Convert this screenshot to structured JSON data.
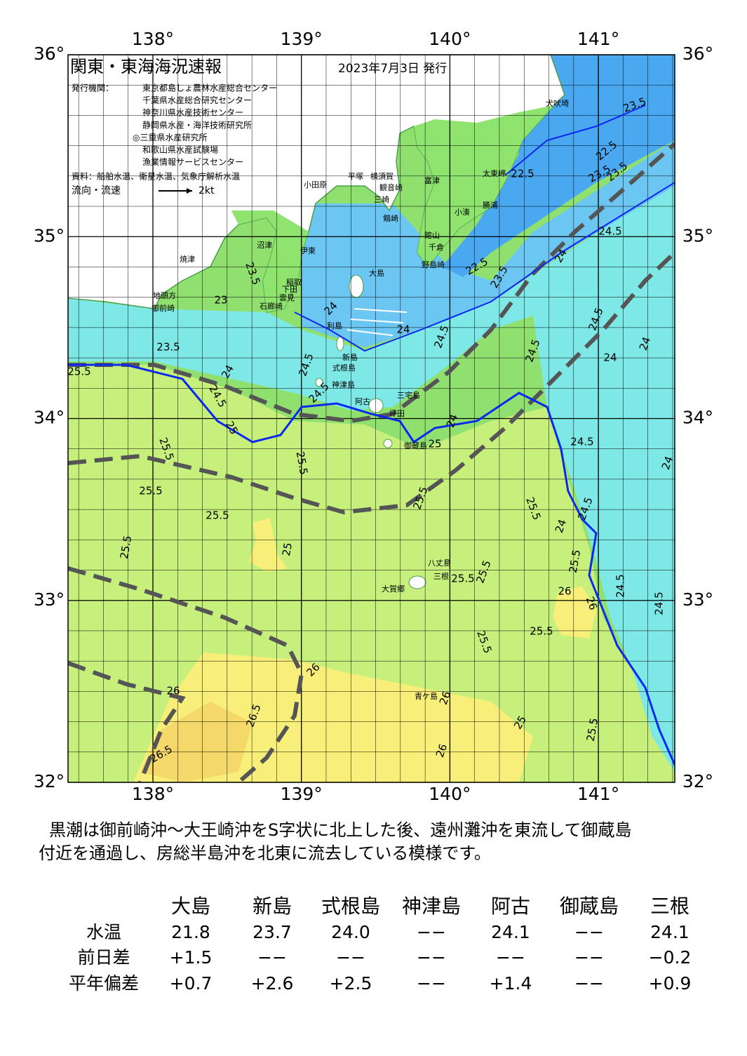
{
  "header": {
    "title": "関東・東海海況速報",
    "date": "2023年7月3日 発行",
    "issuer_label": "発行機関：",
    "issuers": [
      "東京都島しょ農林水産総合センター",
      "千葉県水産総合研究センター",
      "神奈川県水産技術センター",
      "静岡県水産・海洋技術研究所",
      "◎三重県水産研究所",
      "和歌山県水産試験場",
      "漁業情報サービスセンター"
    ],
    "source": "資料：船舶水温、衛星水温、気象庁解析水温",
    "legend_label": "流向・流速",
    "legend_scale": "2kt"
  },
  "map": {
    "lon_labels": [
      "138°",
      "139°",
      "140°",
      "141°"
    ],
    "lat_labels": [
      "36°",
      "35°",
      "34°",
      "33°",
      "32°"
    ]
  },
  "places": [
    "犬吠埼",
    "太東岬",
    "勝浦",
    "小湊",
    "館山",
    "千倉",
    "野島崎",
    "富津",
    "横須賀",
    "観音崎",
    "平塚",
    "小田原",
    "三崎",
    "剱崎",
    "沼津",
    "伊東",
    "稲取",
    "下田",
    "雲見",
    "石廊崎",
    "焼津",
    "地頭方",
    "御前崎",
    "大島",
    "利島",
    "新島",
    "式根島",
    "神津島",
    "三宅島",
    "阿古",
    "坪田",
    "御蔵島",
    "八丈島",
    "三根",
    "大賀郷",
    "青ケ島"
  ],
  "isotherms": [
    23.5,
    22.5,
    23.5,
    22.5,
    23.5,
    24.5,
    24,
    22.5,
    23.5,
    24.5,
    24,
    24,
    23,
    23.5,
    23.5,
    24,
    24.5,
    25,
    24.5,
    24.5,
    24.5,
    24.5,
    24,
    24,
    25.5,
    25.5,
    25.5,
    25.5,
    25.5,
    25.5,
    25.5,
    24.5,
    25.5,
    24.5,
    24,
    25,
    25.5,
    25.5,
    25.5,
    26,
    26,
    25.5,
    25.5,
    24.5,
    24.5,
    26,
    26,
    26.5,
    26.5,
    26,
    26,
    25.5,
    25,
    24,
    25,
    24
  ],
  "description": [
    "黒潮は御前崎沖～大王崎沖をS字状に北上した後、遠州灘沖を東流して御蔵島",
    "付近を通過し、房総半島沖を北東に流去している模様です。"
  ],
  "table": {
    "columns": [
      "大島",
      "新島",
      "式根島",
      "神津島",
      "阿古",
      "御蔵島",
      "三根"
    ],
    "rows": [
      {
        "label": "水温",
        "values": [
          "21.8",
          "23.7",
          "24.0",
          "−−",
          "24.1",
          "−−",
          "24.1"
        ]
      },
      {
        "label": "前日差",
        "values": [
          "+1.5",
          "−−",
          "−−",
          "−−",
          "−−",
          "−−",
          "−0.2"
        ]
      },
      {
        "label": "平年偏差",
        "values": [
          "+0.7",
          "+2.6",
          "+2.5",
          "−−",
          "+1.4",
          "−−",
          "+0.9"
        ]
      }
    ]
  }
}
